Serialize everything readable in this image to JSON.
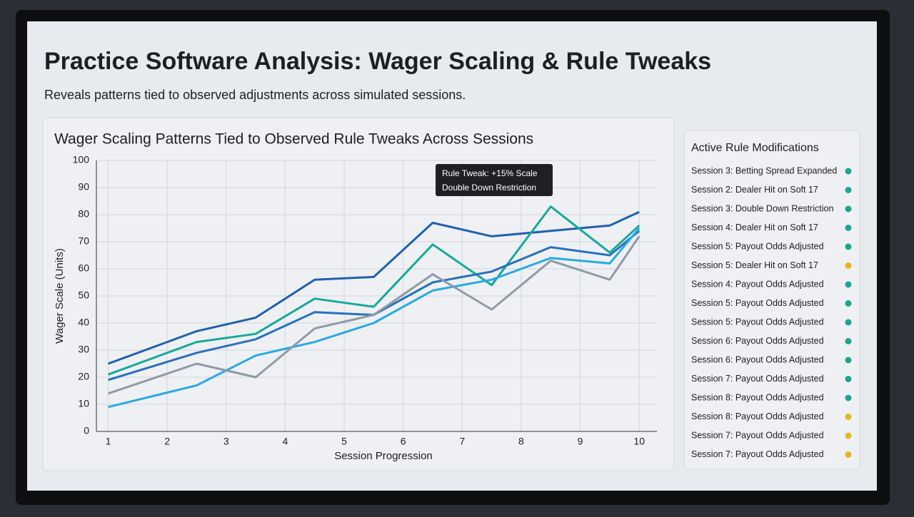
{
  "page": {
    "title": "Practice Software Analysis: Wager Scaling & Rule Tweaks",
    "subtitle": "Reveals patterns tied to observed adjustments across simulated sessions."
  },
  "chart_data": {
    "type": "line",
    "title": "Wager Scaling Patterns Tied to Observed Rule Tweaks Across Sessions",
    "x_label": "Session Progression",
    "y_label": "Wager Scale (Units)",
    "annotations": [
      "Rule Tweak: +15% Scale",
      "Double Down Restriction"
    ],
    "x": [
      1,
      2.5,
      3.5,
      4.5,
      5.5,
      6.5,
      7.5,
      8.5,
      9.5,
      10
    ],
    "series": [
      {
        "color": "#1f5fb0",
        "values": [
          25,
          37,
          42,
          56,
          57,
          77,
          72,
          74,
          76,
          81
        ]
      },
      {
        "color": "#17a99a",
        "values": [
          21,
          33,
          36,
          49,
          46,
          69,
          54,
          83,
          66,
          76
        ]
      },
      {
        "color": "#2a6fbe",
        "values": [
          19,
          29,
          34,
          44,
          43,
          55,
          59,
          68,
          65,
          74
        ]
      },
      {
        "color": "#2aa9e0",
        "values": [
          9,
          17,
          28,
          33,
          40,
          52,
          56,
          64,
          62,
          75
        ]
      },
      {
        "color": "#8f9aa6",
        "values": [
          14,
          25,
          20,
          38,
          43,
          58,
          45,
          63,
          56,
          72
        ]
      }
    ],
    "xlim": [
      0.8,
      10.3
    ],
    "xticks": [
      1,
      2,
      3,
      4,
      5,
      6,
      7,
      8,
      9,
      10
    ],
    "ylim": [
      0,
      100
    ],
    "yticks": [
      0,
      10,
      20,
      30,
      40,
      50,
      60,
      70,
      80,
      90,
      100
    ],
    "grid": true
  },
  "sidebar": {
    "title": "Active Rule Modifications",
    "items": [
      {
        "label": "Session 3: Betting Spread Expanded",
        "color": "#1aa68f"
      },
      {
        "label": "Session 2: Dealer Hit on Soft 17",
        "color": "#1aa68f"
      },
      {
        "label": "Session 3: Double Down Restriction",
        "color": "#1aa68f"
      },
      {
        "label": "Session 4: Dealer Hit on Soft 17",
        "color": "#1aa68f"
      },
      {
        "label": "Session 5: Payout Odds Adjusted",
        "color": "#1aa68f"
      },
      {
        "label": "Session 5: Dealer Hit on Soft 17",
        "color": "#e0b820"
      },
      {
        "label": "Session 4: Payout Odds Adjusted",
        "color": "#1aa68f"
      },
      {
        "label": "Session 5: Payout Odds Adjusted",
        "color": "#1aa68f"
      },
      {
        "label": "Session 5: Payout Odds Adjusted",
        "color": "#1aa68f"
      },
      {
        "label": "Session 6: Payout Odds Adjusted",
        "color": "#1aa68f"
      },
      {
        "label": "Session 6: Payout Odds Adjusted",
        "color": "#1aa68f"
      },
      {
        "label": "Session 7: Payout Odds Adjusted",
        "color": "#1aa68f"
      },
      {
        "label": "Session 8: Payout Odds Adjusted",
        "color": "#1aa68f"
      },
      {
        "label": "Session 8: Payout Odds Adjusted",
        "color": "#e0b820"
      },
      {
        "label": "Session 7: Payout Odds Adjusted",
        "color": "#e0b820"
      },
      {
        "label": "Session 7: Payout Odds Adjusted",
        "color": "#e0b820"
      }
    ]
  }
}
